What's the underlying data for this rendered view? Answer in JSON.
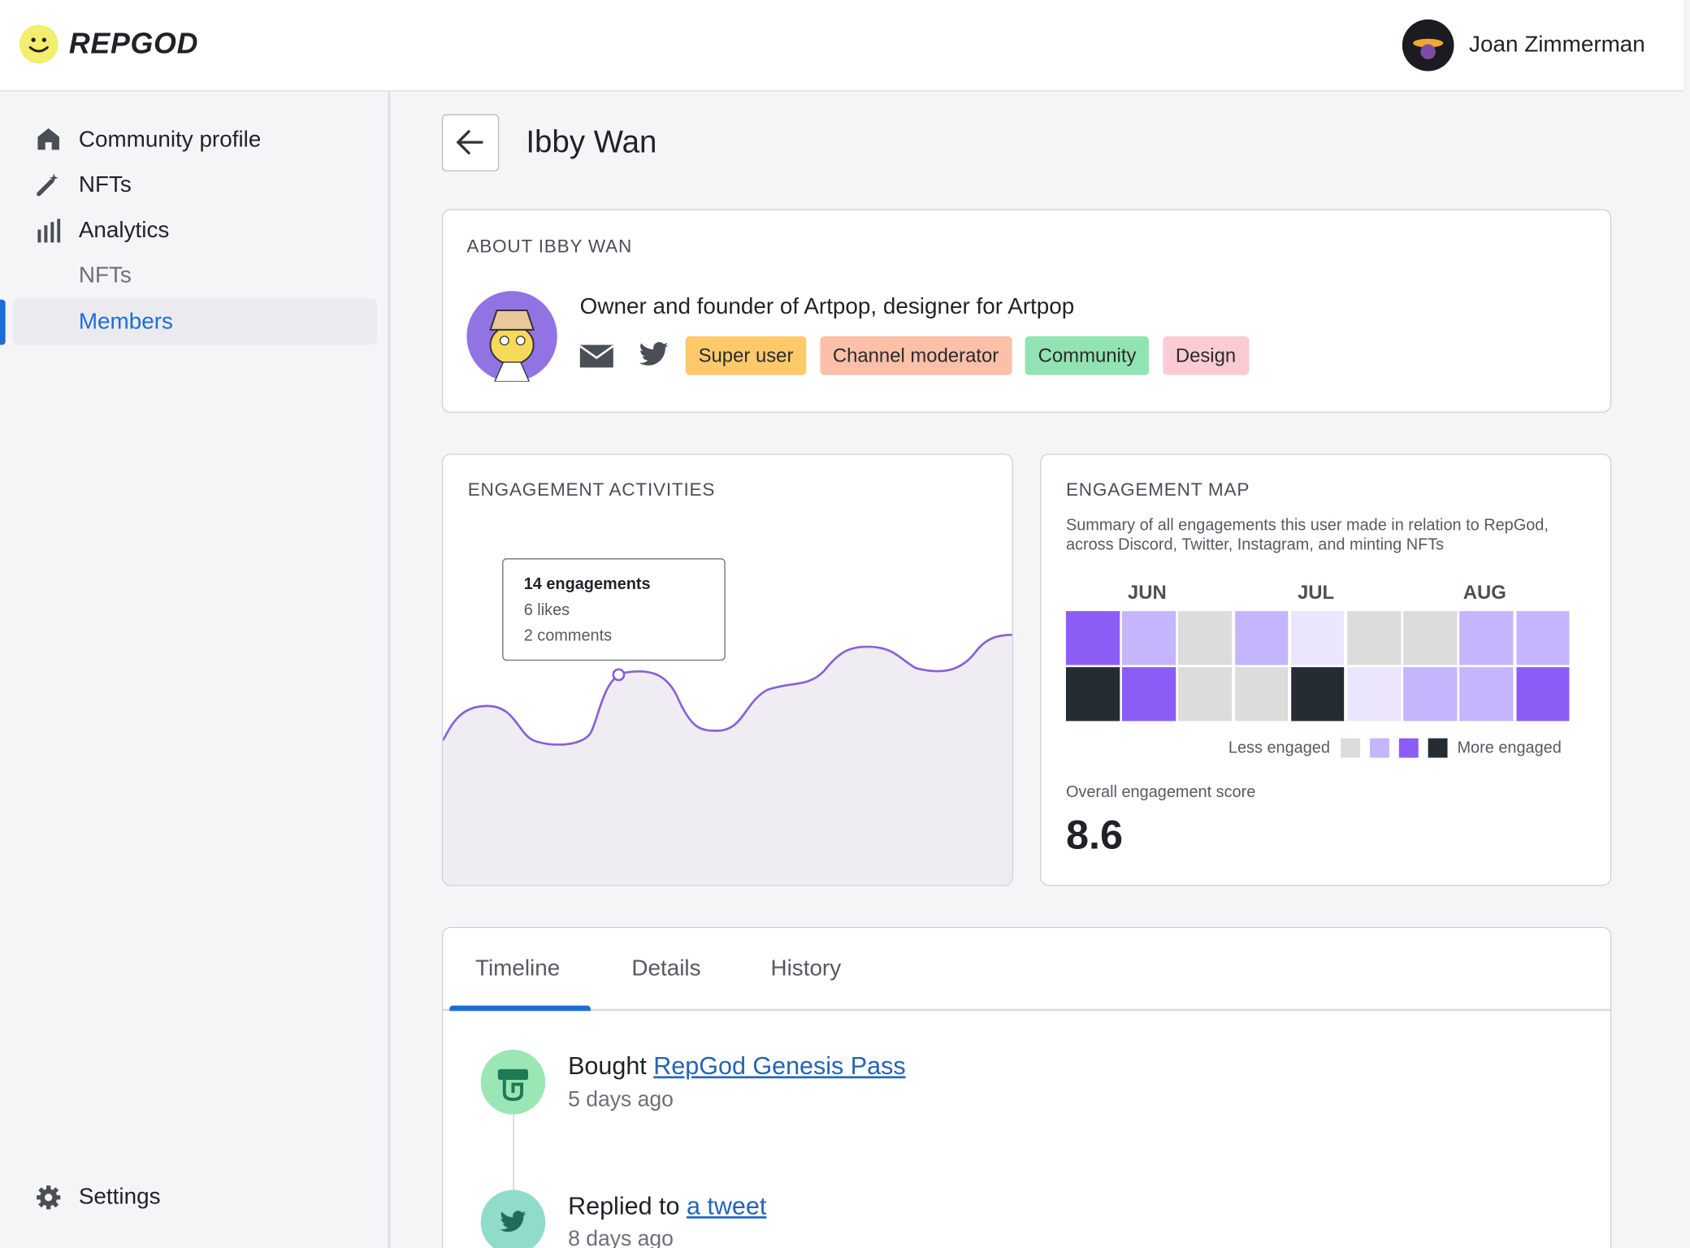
{
  "header": {
    "logo": "REPGOD",
    "user": "Joan Zimmerman"
  },
  "sidebar": {
    "items": [
      "Community profile",
      "NFTs",
      "Analytics",
      "NFTs",
      "Members"
    ],
    "settings": "Settings"
  },
  "profile": {
    "title": "Ibby Wan",
    "about": {
      "heading": "ABOUT IBBY WAN",
      "bio": "Owner and founder of Artpop, designer for Artpop",
      "tags": [
        {
          "label": "Super user",
          "color": "#fdc96b"
        },
        {
          "label": "Channel moderator",
          "color": "#fcbfa8"
        },
        {
          "label": "Community",
          "color": "#92e3b3"
        },
        {
          "label": "Design",
          "color": "#fbcbd3"
        }
      ]
    }
  },
  "engagement_activities": {
    "heading": "ENGAGEMENT ACTIVITIES",
    "tooltip": [
      "14 engagements",
      "6 likes",
      "2 comments"
    ]
  },
  "engagement_map": {
    "heading": "ENGAGEMENT MAP",
    "description": "Summary of all engagements this user made in relation to RepGod, across Discord, Twitter, Instagram, and minting NFTs",
    "months": [
      "JUN",
      "JUL",
      "AUG"
    ],
    "cells": [
      [
        "#8b5cf6",
        "#c4b5fd",
        "#dcdcdc",
        "#c4b5fd",
        "#ebe5fd",
        "#dcdcdc",
        "#dcdcdc",
        "#c4b5fd",
        "#c4b5fd"
      ],
      [
        "#262c33",
        "#8b5cf6",
        "#dcdcdc",
        "#dcdcdc",
        "#262c33",
        "#ebe5fd",
        "#c4b5fd",
        "#c4b5fd",
        "#8b5cf6"
      ]
    ],
    "legend": {
      "less": "Less engaged",
      "more": "More engaged",
      "colors": [
        "#dcdcdc",
        "#c4b5fd",
        "#8b5cf6",
        "#262c33"
      ]
    },
    "score_label": "Overall engagement score",
    "score": 8.6
  },
  "tabs": [
    "Timeline",
    "Details",
    "History"
  ],
  "timeline": [
    {
      "action": "Bought",
      "link": "RepGod Genesis Pass",
      "time": "5 days ago"
    },
    {
      "action": "Replied to",
      "link": "a tweet",
      "time": "8 days ago"
    }
  ]
}
